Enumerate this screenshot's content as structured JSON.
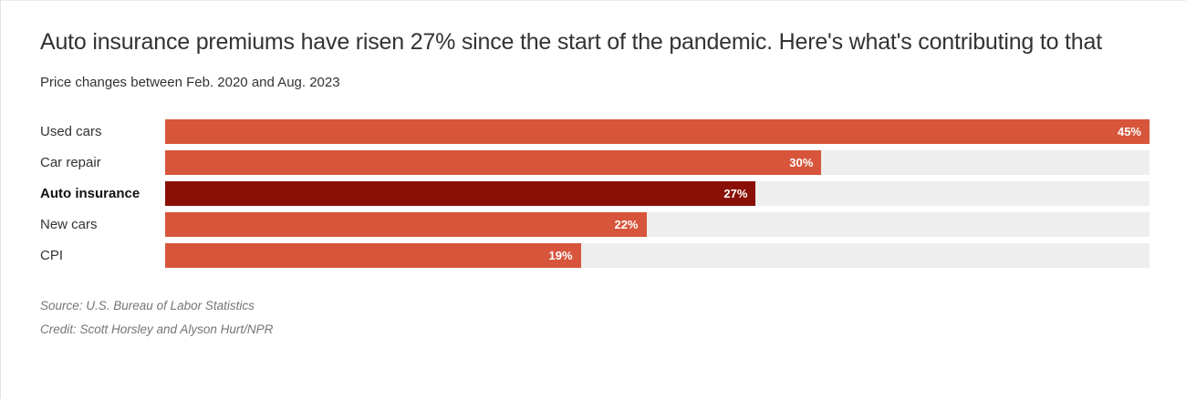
{
  "chart_data": {
    "type": "bar",
    "orientation": "horizontal",
    "title": "Auto insurance premiums have risen 27% since the start of the pandemic. Here's what's contributing to that",
    "subtitle": "Price changes between Feb. 2020 and Aug. 2023",
    "categories": [
      "Used cars",
      "Car repair",
      "Auto insurance",
      "New cars",
      "CPI"
    ],
    "values": [
      45,
      30,
      27,
      22,
      19
    ],
    "value_labels": [
      "45%",
      "30%",
      "27%",
      "22%",
      "19%"
    ],
    "highlight_category": "Auto insurance",
    "xlim": [
      0,
      45
    ],
    "grid": false,
    "legend": false,
    "value_label_position": "inside-end",
    "colors": {
      "bar": "#d6553b",
      "highlight": "#8a1005",
      "track": "#efeeee",
      "value_text": "#ffffff"
    },
    "source": "Source: U.S. Bureau of Labor Statistics",
    "credit": "Credit: Scott Horsley and Alyson Hurt/NPR"
  }
}
